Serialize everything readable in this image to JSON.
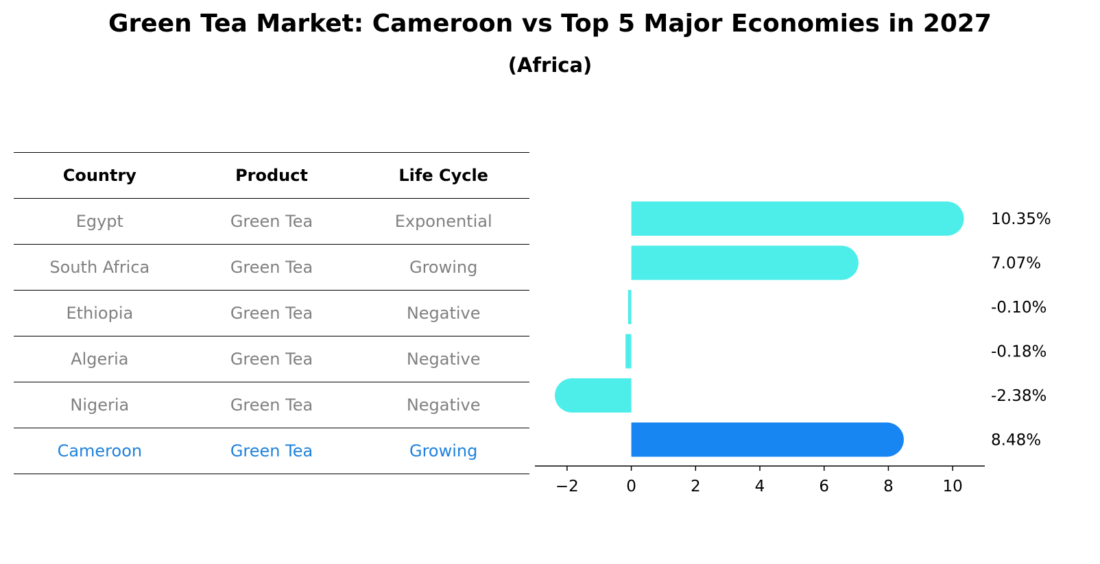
{
  "title": "Green Tea Market: Cameroon vs Top 5 Major Economies in 2027",
  "subtitle": "(Africa)",
  "table": {
    "headers": [
      "Country",
      "Product",
      "Life Cycle"
    ],
    "rows": [
      [
        "Egypt",
        "Green Tea",
        "Exponential"
      ],
      [
        "South Africa",
        "Green Tea",
        "Growing"
      ],
      [
        "Ethiopia",
        "Green Tea",
        "Negative"
      ],
      [
        "Algeria",
        "Green Tea",
        "Negative"
      ],
      [
        "Nigeria",
        "Green Tea",
        "Negative"
      ],
      [
        "Cameroon",
        "Green Tea",
        "Growing"
      ]
    ],
    "highlight_row": 5,
    "highlight_color": "#1e82dc",
    "text_color": "#808080"
  },
  "chart_data": {
    "type": "bar",
    "orientation": "horizontal",
    "categories": [
      "Egypt",
      "South Africa",
      "Ethiopia",
      "Algeria",
      "Nigeria",
      "Cameroon"
    ],
    "values": [
      10.35,
      7.07,
      -0.1,
      -0.18,
      -2.38,
      8.48
    ],
    "value_labels": [
      "10.35%",
      "7.07%",
      "-0.10%",
      "-0.18%",
      "-2.38%",
      "8.48%"
    ],
    "xlim": [
      -3,
      11
    ],
    "xticks": [
      -2,
      0,
      2,
      4,
      6,
      8,
      10
    ],
    "xtick_labels": [
      "−2",
      "0",
      "2",
      "4",
      "6",
      "8",
      "10"
    ],
    "colors": {
      "default": "#4deeea",
      "highlight": "#1785f2"
    },
    "highlight_index": 5,
    "grid": false
  }
}
